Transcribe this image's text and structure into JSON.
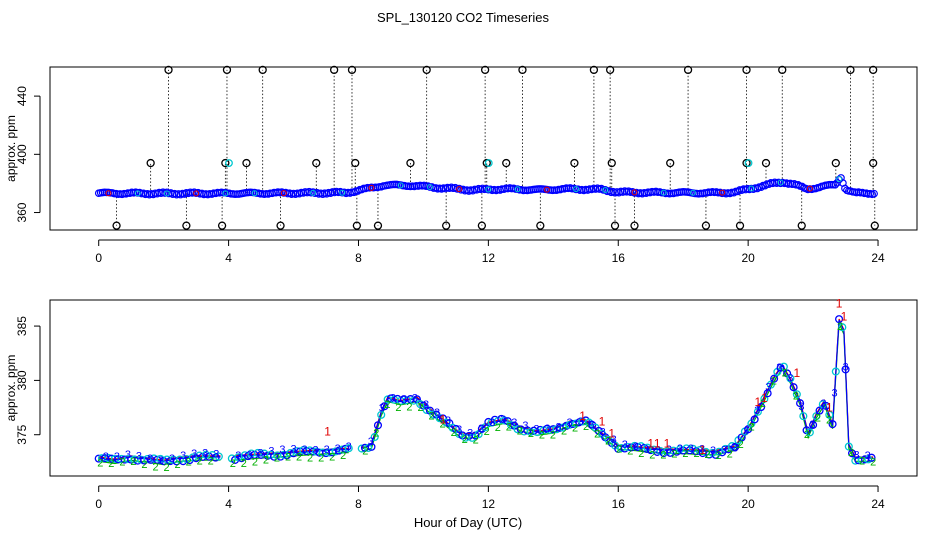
{
  "title": "SPL_130120  CO2 Timeseries",
  "xlabel": "Hour of Day (UTC)",
  "colors": {
    "series1": "#e00000",
    "series2": "#00b000",
    "series3": "#0000ff",
    "symbols": "#00c8d0",
    "line": "#000000"
  },
  "chart_data": [
    {
      "type": "scatter",
      "title": "SPL_130120  CO2 Timeseries",
      "xlabel": "",
      "ylabel": "approx. ppm",
      "xlim": [
        -1.5,
        25.2
      ],
      "ylim": [
        348,
        460
      ],
      "xticks": [
        0,
        4,
        8,
        12,
        16,
        20,
        24
      ],
      "yticks": [
        360,
        400,
        440
      ],
      "baseline_profile": [
        [
          0,
          373.3
        ],
        [
          2,
          373.1
        ],
        [
          4,
          373.2
        ],
        [
          6,
          373.4
        ],
        [
          7.6,
          373.6
        ],
        [
          8.2,
          376
        ],
        [
          8.8,
          378.8
        ],
        [
          9.6,
          378.6
        ],
        [
          10.5,
          377
        ],
        [
          11.5,
          375.5
        ],
        [
          12.5,
          376.2
        ],
        [
          13.5,
          375.6
        ],
        [
          14.5,
          376.2
        ],
        [
          15.5,
          375.8
        ],
        [
          16,
          374
        ],
        [
          17,
          373.7
        ],
        [
          18,
          373.6
        ],
        [
          19,
          373.5
        ],
        [
          19.6,
          374
        ],
        [
          20.3,
          377.5
        ],
        [
          20.8,
          380
        ],
        [
          21.1,
          381
        ],
        [
          21.4,
          379.5
        ],
        [
          21.8,
          376
        ],
        [
          22.3,
          378
        ],
        [
          22.7,
          379
        ],
        [
          22.85,
          385
        ],
        [
          23.0,
          376
        ],
        [
          23.3,
          373.3
        ],
        [
          23.9,
          373.3
        ]
      ],
      "spikes": [
        [
          2.15,
          458
        ],
        [
          3.95,
          458
        ],
        [
          5.05,
          458
        ],
        [
          7.25,
          458
        ],
        [
          7.8,
          458
        ],
        [
          10.1,
          458
        ],
        [
          11.9,
          458
        ],
        [
          13.05,
          458
        ],
        [
          15.25,
          458
        ],
        [
          15.75,
          458
        ],
        [
          18.15,
          458
        ],
        [
          19.95,
          458
        ],
        [
          21.05,
          458
        ],
        [
          23.15,
          458
        ],
        [
          23.85,
          458
        ],
        [
          1.6,
          394
        ],
        [
          3.9,
          394
        ],
        [
          4.55,
          394
        ],
        [
          6.7,
          394
        ],
        [
          7.9,
          394
        ],
        [
          9.6,
          394
        ],
        [
          11.95,
          394
        ],
        [
          12.55,
          394
        ],
        [
          14.65,
          394
        ],
        [
          15.8,
          394
        ],
        [
          17.6,
          394
        ],
        [
          19.95,
          394
        ],
        [
          20.55,
          394
        ],
        [
          22.7,
          394
        ],
        [
          23.85,
          394
        ],
        [
          0.55,
          351
        ],
        [
          2.7,
          351
        ],
        [
          3.8,
          351
        ],
        [
          5.6,
          351
        ],
        [
          7.95,
          351
        ],
        [
          8.6,
          351
        ],
        [
          10.7,
          351
        ],
        [
          11.8,
          351
        ],
        [
          13.6,
          351
        ],
        [
          15.9,
          351
        ],
        [
          16.5,
          351
        ],
        [
          18.7,
          351
        ],
        [
          19.75,
          351
        ],
        [
          21.65,
          351
        ],
        [
          23.9,
          351
        ]
      ]
    },
    {
      "type": "scatter",
      "title": "",
      "xlabel": "Hour of Day (UTC)",
      "ylabel": "approx. ppm",
      "xlim": [
        -1.5,
        25.2
      ],
      "ylim": [
        371.2,
        387.4
      ],
      "xticks": [
        0,
        4,
        8,
        12,
        16,
        20,
        24
      ],
      "yticks": [
        375,
        380,
        385
      ],
      "series_labels": [
        "1",
        "2",
        "3"
      ],
      "profile": [
        [
          0,
          372.8
        ],
        [
          0.5,
          372.6
        ],
        [
          1,
          372.9
        ],
        [
          1.5,
          372.7
        ],
        [
          2,
          372.5
        ],
        [
          2.5,
          372.8
        ],
        [
          3,
          372.9
        ],
        [
          3.75,
          372.9
        ],
        [
          4.1,
          372.9
        ],
        [
          5,
          373.1
        ],
        [
          6,
          373.3
        ],
        [
          7,
          373.5
        ],
        [
          7.7,
          373.6
        ],
        [
          8,
          373.6
        ],
        [
          8.4,
          374
        ],
        [
          8.7,
          377
        ],
        [
          8.9,
          378.3
        ],
        [
          9.3,
          378
        ],
        [
          9.8,
          378.3
        ],
        [
          10.3,
          377
        ],
        [
          10.8,
          375.8
        ],
        [
          11.2,
          374.9
        ],
        [
          11.6,
          375
        ],
        [
          12,
          376
        ],
        [
          12.5,
          376.3
        ],
        [
          13,
          375.6
        ],
        [
          13.5,
          375.2
        ],
        [
          14,
          375.4
        ],
        [
          14.5,
          376.1
        ],
        [
          15,
          376.2
        ],
        [
          15.5,
          375
        ],
        [
          15.8,
          374.4
        ],
        [
          16,
          373.9
        ],
        [
          16.5,
          373.8
        ],
        [
          17,
          373.6
        ],
        [
          18,
          373.5
        ],
        [
          19,
          373.4
        ],
        [
          19.6,
          373.8
        ],
        [
          20.1,
          376
        ],
        [
          20.4,
          377.8
        ],
        [
          20.8,
          380.2
        ],
        [
          21.05,
          381.3
        ],
        [
          21.3,
          380
        ],
        [
          21.6,
          378
        ],
        [
          21.85,
          375
        ],
        [
          22.1,
          376.8
        ],
        [
          22.35,
          378
        ],
        [
          22.6,
          375.8
        ],
        [
          22.8,
          385.5
        ],
        [
          22.95,
          384.5
        ],
        [
          23.1,
          374
        ],
        [
          23.3,
          372.8
        ],
        [
          23.9,
          372.8
        ]
      ],
      "gaps": [
        [
          3.75,
          4.1
        ],
        [
          7.7,
          8.05
        ]
      ],
      "series_offsets": [
        {
          "name": "1",
          "offset": 0.15
        },
        {
          "name": "2",
          "offset": -0.25
        },
        {
          "name": "3",
          "offset": 0.05
        }
      ],
      "label_1_points": [
        [
          7.05,
          375.3
        ],
        [
          10.6,
          376.4
        ],
        [
          14.9,
          376.7
        ],
        [
          15.5,
          376.2
        ],
        [
          15.8,
          375.1
        ],
        [
          17.0,
          374.2
        ],
        [
          17.2,
          374.2
        ],
        [
          17.5,
          374.2
        ],
        [
          18.6,
          373.6
        ],
        [
          20.3,
          378
        ],
        [
          20.5,
          378.4
        ],
        [
          21.5,
          380.7
        ],
        [
          22.5,
          377.5
        ],
        [
          22.8,
          387.1
        ],
        [
          22.95,
          385.9
        ]
      ]
    }
  ]
}
